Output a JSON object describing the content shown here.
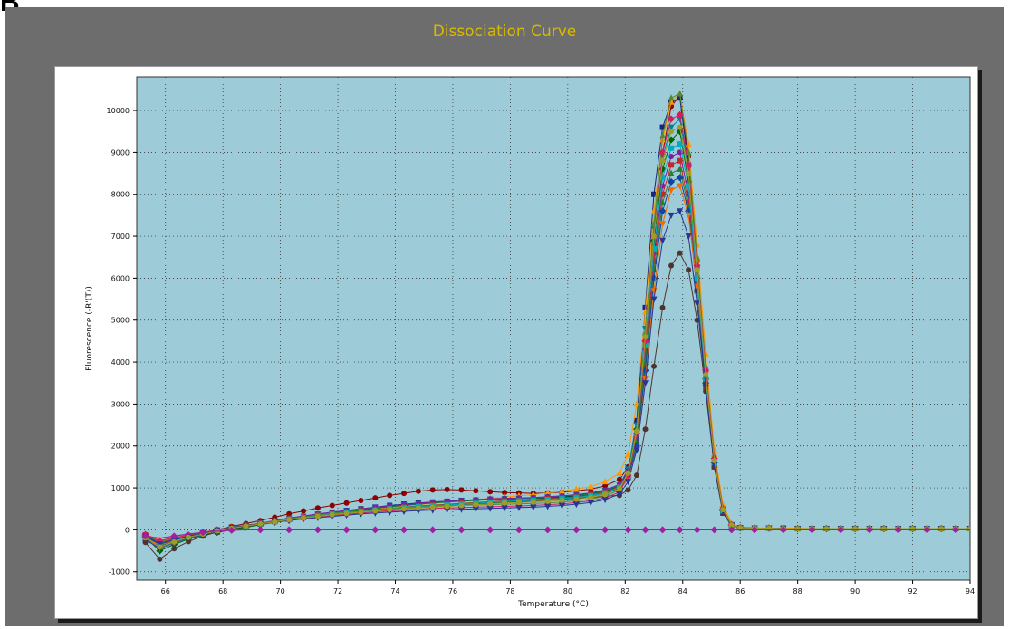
{
  "panel_label": "B",
  "colors": {
    "frame": "#6d6d6d",
    "title": "#d9b900",
    "plot_bg": "#9ecbd8",
    "grid": "#222222",
    "flat_trace": "#a020a0",
    "series_palette": [
      "#8b0000",
      "#1a237e",
      "#ff9800",
      "#006400",
      "#00838f",
      "#7b1fa2",
      "#c62828",
      "#2e7d32",
      "#0d47a1",
      "#ef6c00",
      "#4e342e",
      "#00acc1",
      "#558b2f",
      "#d81b60",
      "#283593",
      "#9e9d24"
    ]
  },
  "chart_data": {
    "type": "line",
    "title": "Dissociation Curve",
    "xlabel": "Temperature (°C)",
    "ylabel": "Fluorescence (-R'(T))",
    "xlim": [
      65,
      94
    ],
    "ylim": [
      -1200,
      10800
    ],
    "xticks": [
      66,
      68,
      70,
      72,
      74,
      76,
      78,
      80,
      82,
      84,
      86,
      88,
      90,
      92,
      94
    ],
    "yticks": [
      -1000,
      0,
      1000,
      2000,
      3000,
      4000,
      5000,
      6000,
      7000,
      8000,
      9000,
      10000
    ],
    "grid": true,
    "legend": "none",
    "peak_temperature": 83.9,
    "x": [
      65.3,
      65.8,
      66.3,
      66.8,
      67.3,
      67.8,
      68.3,
      68.8,
      69.3,
      69.8,
      70.3,
      70.8,
      71.3,
      71.8,
      72.3,
      72.8,
      73.3,
      73.8,
      74.3,
      74.8,
      75.3,
      75.8,
      76.3,
      76.8,
      77.3,
      77.8,
      78.3,
      78.8,
      79.3,
      79.8,
      80.3,
      80.8,
      81.3,
      81.8,
      82.1,
      82.4,
      82.7,
      83.0,
      83.3,
      83.6,
      83.9,
      84.2,
      84.5,
      84.8,
      85.1,
      85.4,
      85.7,
      86.0,
      86.5,
      87.0,
      87.5,
      88.0,
      88.5,
      89.0,
      89.5,
      90.0,
      90.5,
      91.0,
      91.5,
      92.0,
      92.5,
      93.0,
      93.5,
      94.0
    ],
    "series": [
      {
        "peak": 10350,
        "values": [
          -150,
          -350,
          -250,
          -150,
          -80,
          0,
          80,
          150,
          220,
          300,
          380,
          450,
          520,
          580,
          640,
          700,
          760,
          820,
          870,
          920,
          950,
          960,
          950,
          930,
          910,
          890,
          880,
          870,
          880,
          900,
          930,
          970,
          1050,
          1200,
          1500,
          2300,
          4200,
          6800,
          9000,
          10100,
          10350,
          8900,
          6400,
          3800,
          1700,
          500,
          120,
          60,
          40,
          40,
          30,
          30,
          30,
          30,
          30,
          30,
          30,
          30,
          30,
          30,
          30,
          30,
          30,
          30
        ]
      },
      {
        "peak": 10300,
        "values": [
          -200,
          -400,
          -300,
          -200,
          -120,
          -50,
          20,
          80,
          140,
          200,
          260,
          320,
          370,
          420,
          460,
          500,
          540,
          580,
          610,
          640,
          660,
          680,
          700,
          710,
          720,
          730,
          740,
          750,
          760,
          780,
          800,
          830,
          880,
          1000,
          1400,
          2600,
          5300,
          8000,
          9600,
          10200,
          10300,
          8700,
          6000,
          3500,
          1500,
          400,
          100,
          50,
          40,
          40,
          40,
          30,
          30,
          30,
          30,
          30,
          30,
          30,
          30,
          30,
          30,
          30,
          30,
          30
        ]
      },
      {
        "peak": 10400,
        "values": [
          -100,
          -250,
          -200,
          -120,
          -60,
          0,
          50,
          100,
          150,
          200,
          250,
          300,
          340,
          380,
          420,
          460,
          500,
          540,
          570,
          600,
          630,
          660,
          690,
          720,
          750,
          780,
          810,
          840,
          880,
          920,
          970,
          1030,
          1150,
          1350,
          1800,
          3000,
          5200,
          7600,
          9300,
          10200,
          10400,
          9200,
          6800,
          4200,
          1900,
          600,
          150,
          60,
          50,
          40,
          40,
          40,
          30,
          30,
          30,
          30,
          30,
          30,
          30,
          30,
          30,
          30,
          30,
          30
        ]
      },
      {
        "peak": 9500,
        "values": [
          -180,
          -500,
          -350,
          -220,
          -130,
          -60,
          0,
          60,
          120,
          180,
          240,
          290,
          340,
          390,
          430,
          470,
          510,
          550,
          580,
          610,
          640,
          660,
          680,
          700,
          720,
          730,
          740,
          750,
          770,
          790,
          820,
          860,
          920,
          1050,
          1400,
          2400,
          4500,
          6900,
          8600,
          9300,
          9500,
          8300,
          6000,
          3600,
          1600,
          450,
          110,
          50,
          40,
          40,
          30,
          30,
          30,
          30,
          30,
          30,
          30,
          30,
          30,
          30,
          30,
          30,
          30,
          30
        ]
      },
      {
        "peak": 9800,
        "values": [
          -220,
          -450,
          -320,
          -200,
          -110,
          -40,
          30,
          90,
          150,
          210,
          270,
          320,
          370,
          410,
          450,
          490,
          530,
          560,
          590,
          620,
          650,
          670,
          690,
          710,
          730,
          740,
          750,
          760,
          780,
          800,
          830,
          870,
          940,
          1070,
          1450,
          2500,
          4800,
          7200,
          8900,
          9600,
          9800,
          8600,
          6200,
          3700,
          1650,
          480,
          120,
          50,
          40,
          40,
          30,
          30,
          30,
          30,
          30,
          30,
          30,
          30,
          30,
          30,
          30,
          30,
          30,
          30
        ]
      },
      {
        "peak": 9000,
        "values": [
          -250,
          -420,
          -300,
          -190,
          -100,
          -30,
          40,
          100,
          160,
          220,
          280,
          330,
          380,
          420,
          460,
          500,
          540,
          570,
          600,
          630,
          660,
          680,
          700,
          720,
          740,
          750,
          760,
          770,
          790,
          810,
          840,
          880,
          950,
          1080,
          1400,
          2300,
          4300,
          6600,
          8200,
          8900,
          9000,
          8000,
          5900,
          3600,
          1600,
          460,
          110,
          50,
          40,
          40,
          30,
          30,
          30,
          30,
          30,
          30,
          30,
          30,
          30,
          30,
          30,
          30,
          30,
          30
        ]
      },
      {
        "peak": 8800,
        "values": [
          -120,
          -300,
          -220,
          -140,
          -70,
          0,
          60,
          110,
          160,
          210,
          260,
          300,
          340,
          380,
          420,
          450,
          480,
          510,
          540,
          570,
          590,
          610,
          630,
          650,
          670,
          690,
          700,
          720,
          740,
          760,
          790,
          830,
          900,
          1030,
          1350,
          2200,
          4100,
          6400,
          8000,
          8700,
          8800,
          7800,
          5700,
          3400,
          1500,
          430,
          100,
          50,
          40,
          40,
          30,
          30,
          30,
          30,
          30,
          30,
          30,
          30,
          30,
          30,
          30,
          30,
          30,
          30
        ]
      },
      {
        "peak": 8600,
        "values": [
          -160,
          -380,
          -270,
          -170,
          -90,
          -20,
          40,
          100,
          150,
          200,
          250,
          300,
          340,
          380,
          420,
          450,
          480,
          510,
          540,
          560,
          580,
          600,
          620,
          640,
          660,
          680,
          700,
          710,
          730,
          750,
          780,
          820,
          880,
          1000,
          1300,
          2100,
          4000,
          6200,
          7800,
          8500,
          8600,
          7700,
          5700,
          3500,
          1550,
          440,
          110,
          50,
          40,
          40,
          30,
          30,
          30,
          30,
          30,
          30,
          30,
          30,
          30,
          30,
          30,
          30,
          30,
          30
        ]
      },
      {
        "peak": 8400,
        "values": [
          -140,
          -320,
          -240,
          -150,
          -80,
          -10,
          50,
          100,
          150,
          200,
          240,
          280,
          320,
          360,
          400,
          430,
          460,
          490,
          520,
          540,
          560,
          580,
          600,
          620,
          640,
          660,
          670,
          690,
          710,
          730,
          760,
          800,
          860,
          980,
          1250,
          2000,
          3800,
          6000,
          7600,
          8300,
          8400,
          7600,
          5700,
          3500,
          1600,
          460,
          110,
          50,
          40,
          40,
          30,
          30,
          30,
          30,
          30,
          30,
          30,
          30,
          30,
          30,
          30,
          30,
          30,
          30
        ]
      },
      {
        "peak": 8200,
        "values": [
          -200,
          -360,
          -260,
          -160,
          -90,
          -20,
          40,
          90,
          140,
          190,
          230,
          270,
          310,
          350,
          380,
          410,
          440,
          470,
          500,
          520,
          540,
          560,
          580,
          600,
          620,
          640,
          660,
          680,
          700,
          720,
          750,
          790,
          850,
          960,
          1200,
          1900,
          3600,
          5700,
          7300,
          8100,
          8200,
          7500,
          5800,
          3700,
          1700,
          500,
          120,
          50,
          40,
          40,
          30,
          30,
          30,
          30,
          30,
          30,
          30,
          30,
          30,
          30,
          30,
          30,
          30,
          30
        ]
      },
      {
        "peak": 6600,
        "values": [
          -300,
          -700,
          -450,
          -280,
          -150,
          -50,
          30,
          90,
          150,
          200,
          250,
          290,
          330,
          370,
          400,
          430,
          460,
          490,
          510,
          530,
          550,
          570,
          590,
          610,
          630,
          650,
          670,
          690,
          710,
          730,
          750,
          770,
          800,
          820,
          950,
          1300,
          2400,
          3900,
          5300,
          6300,
          6600,
          6200,
          5000,
          3300,
          1500,
          400,
          100,
          50,
          40,
          40,
          30,
          30,
          30,
          30,
          30,
          30,
          30,
          30,
          30,
          30,
          30,
          30,
          30,
          30
        ]
      },
      {
        "peak": 9200,
        "values": [
          -170,
          -330,
          -250,
          -160,
          -85,
          -15,
          45,
          100,
          150,
          200,
          250,
          290,
          330,
          370,
          410,
          440,
          470,
          500,
          530,
          550,
          570,
          590,
          610,
          630,
          650,
          670,
          690,
          700,
          720,
          740,
          770,
          810,
          880,
          1010,
          1350,
          2300,
          4400,
          6700,
          8400,
          9100,
          9200,
          8200,
          6000,
          3600,
          1600,
          450,
          110,
          50,
          40,
          40,
          30,
          30,
          30,
          30,
          30,
          30,
          30,
          30,
          30,
          30,
          30,
          30,
          30,
          30
        ]
      },
      {
        "peak": 10400,
        "values": [
          -130,
          -280,
          -210,
          -130,
          -70,
          0,
          60,
          110,
          160,
          210,
          260,
          310,
          350,
          390,
          420,
          450,
          480,
          500,
          520,
          540,
          560,
          570,
          580,
          590,
          600,
          610,
          620,
          630,
          640,
          660,
          690,
          730,
          800,
          950,
          1350,
          2400,
          4700,
          7300,
          9400,
          10300,
          10400,
          9000,
          6500,
          3900,
          1750,
          520,
          120,
          50,
          40,
          40,
          30,
          30,
          30,
          30,
          30,
          30,
          30,
          30,
          30,
          30,
          30,
          30,
          30,
          30
        ]
      },
      {
        "peak": 9900,
        "values": [
          -110,
          -260,
          -190,
          -120,
          -60,
          0,
          50,
          100,
          150,
          190,
          230,
          270,
          310,
          340,
          370,
          400,
          430,
          450,
          470,
          490,
          510,
          520,
          530,
          540,
          550,
          560,
          570,
          580,
          600,
          620,
          650,
          690,
          760,
          900,
          1300,
          2300,
          4500,
          7000,
          9000,
          9800,
          9900,
          8700,
          6300,
          3800,
          1700,
          500,
          120,
          50,
          40,
          40,
          30,
          30,
          30,
          30,
          30,
          30,
          30,
          30,
          30,
          30,
          30,
          30,
          30,
          30
        ]
      },
      {
        "peak": 7600,
        "values": [
          -150,
          -340,
          -240,
          -150,
          -80,
          -10,
          50,
          100,
          140,
          180,
          220,
          260,
          290,
          320,
          350,
          380,
          400,
          420,
          440,
          460,
          470,
          480,
          490,
          500,
          510,
          520,
          530,
          540,
          560,
          580,
          610,
          650,
          720,
          850,
          1150,
          1900,
          3500,
          5500,
          6900,
          7500,
          7600,
          7000,
          5400,
          3400,
          1550,
          450,
          110,
          50,
          40,
          40,
          30,
          30,
          30,
          30,
          30,
          30,
          30,
          30,
          30,
          30,
          30,
          30,
          30,
          30
        ]
      },
      {
        "peak": 9600,
        "values": [
          -190,
          -410,
          -290,
          -180,
          -100,
          -25,
          35,
          90,
          140,
          190,
          240,
          280,
          320,
          360,
          390,
          420,
          450,
          480,
          500,
          520,
          540,
          560,
          580,
          600,
          620,
          640,
          650,
          660,
          680,
          700,
          730,
          770,
          840,
          980,
          1350,
          2350,
          4600,
          7000,
          8800,
          9500,
          9600,
          8500,
          6200,
          3700,
          1650,
          480,
          115,
          50,
          40,
          40,
          30,
          30,
          30,
          30,
          30,
          30,
          30,
          30,
          30,
          30,
          30,
          30,
          30,
          30
        ]
      }
    ],
    "flat_series": {
      "values": [
        -150,
        -200,
        -150,
        -100,
        -60,
        -30,
        -10,
        0,
        0,
        0,
        0,
        0,
        0,
        0,
        0,
        0,
        0,
        0,
        0,
        0,
        0,
        0,
        0,
        0,
        0,
        0,
        0,
        0,
        0,
        0,
        0,
        0,
        0,
        0,
        0,
        0,
        0,
        0,
        0,
        0,
        0,
        0,
        0,
        0,
        0,
        0,
        0,
        0,
        0,
        0,
        0,
        0,
        0,
        0,
        0,
        0,
        0,
        0,
        0,
        0,
        0,
        0,
        0,
        0
      ]
    }
  }
}
